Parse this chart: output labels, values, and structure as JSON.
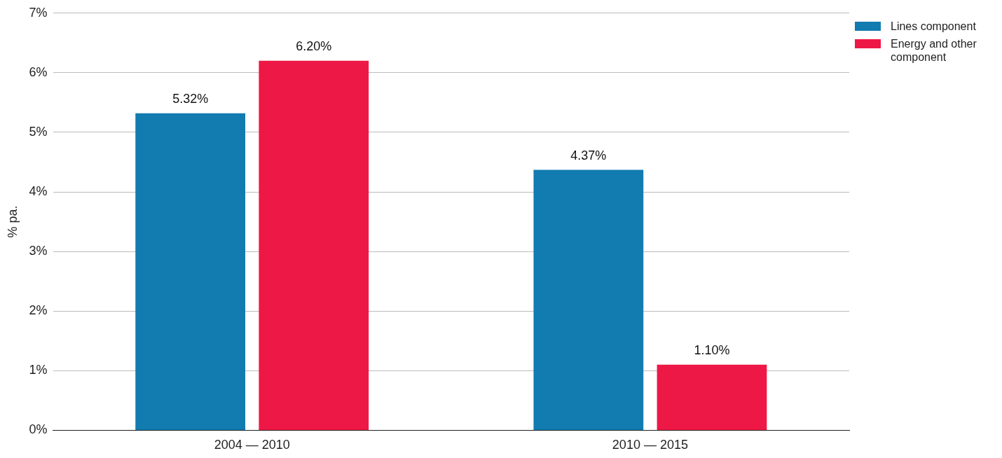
{
  "chart_data": {
    "type": "bar",
    "ylabel": "% pa.",
    "categories": [
      "2004 — 2010",
      "2010 — 2015"
    ],
    "series": [
      {
        "name": "Lines component",
        "color": "#127bb0",
        "values": [
          5.32,
          4.37
        ],
        "value_labels": [
          "5.32%",
          "4.37%"
        ]
      },
      {
        "name": "Energy and other component",
        "color": "#ee1846",
        "values": [
          6.2,
          1.1
        ],
        "value_labels": [
          "6.20%",
          "1.10%"
        ]
      }
    ],
    "ylim": [
      0,
      7
    ],
    "yticks": [
      {
        "value": 0,
        "label": "0%"
      },
      {
        "value": 1,
        "label": "1%"
      },
      {
        "value": 2,
        "label": "2%"
      },
      {
        "value": 3,
        "label": "3%"
      },
      {
        "value": 4,
        "label": "4%"
      },
      {
        "value": 5,
        "label": "5%"
      },
      {
        "value": 6,
        "label": "6%"
      },
      {
        "value": 7,
        "label": "7%"
      }
    ],
    "grid": "y",
    "legend": "top right"
  }
}
